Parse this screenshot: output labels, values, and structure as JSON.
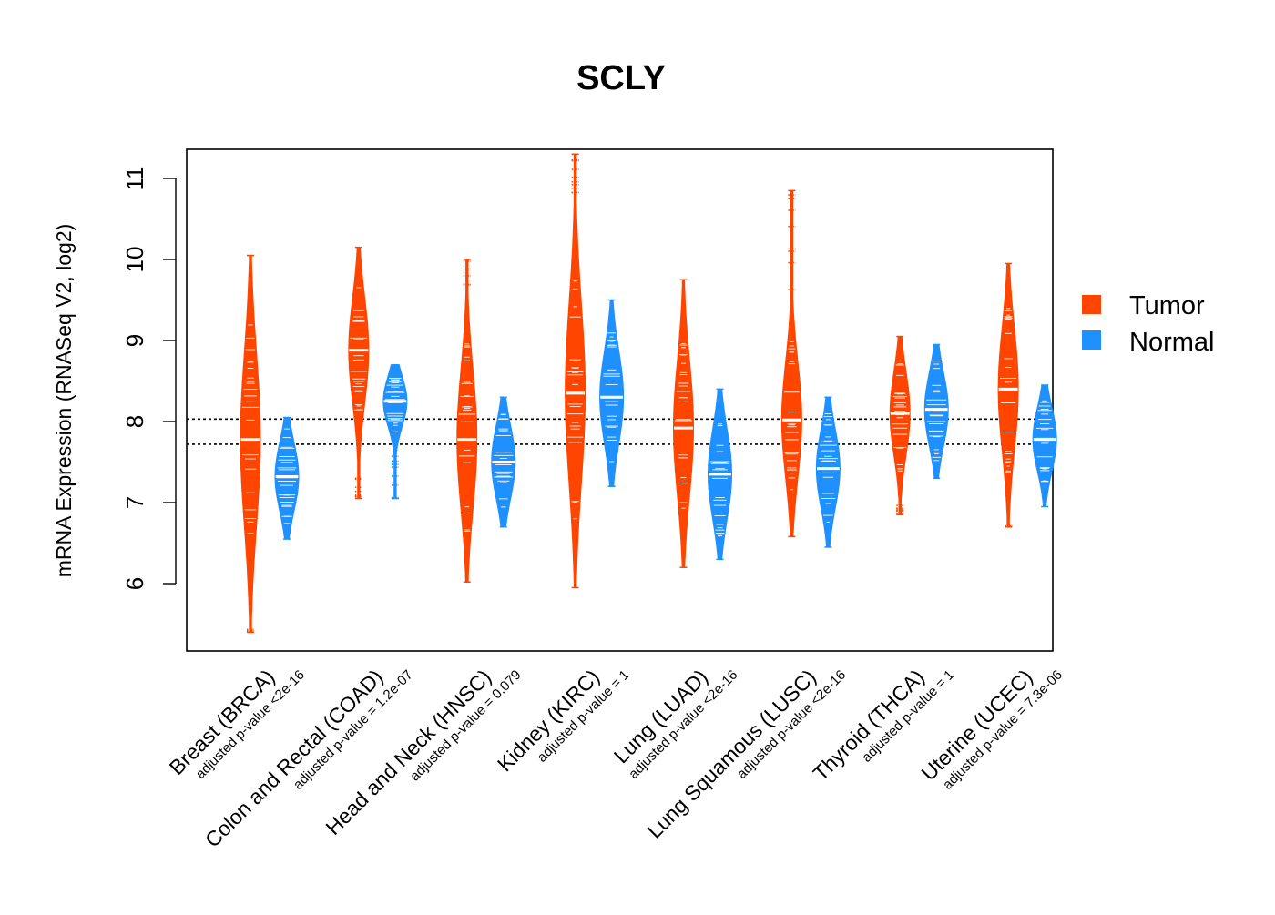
{
  "chart_data": {
    "type": "violin",
    "title": "SCLY",
    "xlabel": "",
    "ylabel": "mRNA Expression (RNASeq V2, log2)",
    "ylim": [
      5.3,
      11.5
    ],
    "yticks": [
      6,
      7,
      8,
      9,
      10,
      11
    ],
    "reference_lines": [
      8.03,
      7.72
    ],
    "legend": {
      "placement": "right",
      "entries": [
        {
          "name": "Tumor",
          "color": "#FF4500"
        },
        {
          "name": "Normal",
          "color": "#1E90FF"
        }
      ]
    },
    "colors": {
      "tumor": "#FF4500",
      "normal": "#1E90FF"
    },
    "categories": [
      {
        "label": "Breast (BRCA)",
        "pvalue": "adjusted p-value <2e-16",
        "tumor": {
          "median": 7.78,
          "min": 5.4,
          "max": 10.05
        },
        "normal": {
          "median": 7.32,
          "min": 6.55,
          "max": 8.05
        }
      },
      {
        "label": "Colon and Rectal (COAD)",
        "pvalue": "adjusted p-value = 1.2e-07",
        "tumor": {
          "median": 8.88,
          "min": 7.05,
          "max": 10.15
        },
        "normal": {
          "median": 8.25,
          "min": 7.05,
          "max": 8.7
        }
      },
      {
        "label": "Head and Neck (HNSC)",
        "pvalue": "adjusted p-value = 0.079",
        "tumor": {
          "median": 7.78,
          "min": 6.02,
          "max": 10.0
        },
        "normal": {
          "median": 7.5,
          "min": 6.7,
          "max": 8.3
        }
      },
      {
        "label": "Kidney (KIRC)",
        "pvalue": "adjusted p-value = 1",
        "tumor": {
          "median": 8.35,
          "min": 5.95,
          "max": 11.3
        },
        "normal": {
          "median": 8.3,
          "min": 7.2,
          "max": 9.5
        }
      },
      {
        "label": "Lung (LUAD)",
        "pvalue": "adjusted p-value <2e-16",
        "tumor": {
          "median": 7.92,
          "min": 6.2,
          "max": 9.75
        },
        "normal": {
          "median": 7.35,
          "min": 6.3,
          "max": 8.4
        }
      },
      {
        "label": "Lung Squamous (LUSC)",
        "pvalue": "adjusted p-value <2e-16",
        "tumor": {
          "median": 8.02,
          "min": 6.58,
          "max": 10.85
        },
        "normal": {
          "median": 7.42,
          "min": 6.45,
          "max": 8.3
        }
      },
      {
        "label": "Thyroid (THCA)",
        "pvalue": "adjusted p-value = 1",
        "tumor": {
          "median": 8.1,
          "min": 6.85,
          "max": 9.05
        },
        "normal": {
          "median": 8.15,
          "min": 7.3,
          "max": 8.95
        }
      },
      {
        "label": "Uterine (UCEC)",
        "pvalue": "adjusted p-value = 7.3e-06",
        "tumor": {
          "median": 8.4,
          "min": 6.7,
          "max": 9.95
        },
        "normal": {
          "median": 7.78,
          "min": 6.95,
          "max": 8.45
        }
      }
    ]
  }
}
